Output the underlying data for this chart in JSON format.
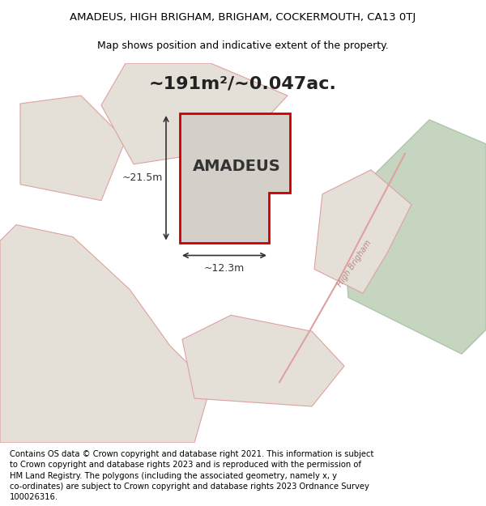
{
  "title": "AMADEUS, HIGH BRIGHAM, BRIGHAM, COCKERMOUTH, CA13 0TJ",
  "subtitle": "Map shows position and indicative extent of the property.",
  "area_text": "~191m²/~0.047ac.",
  "property_label": "AMADEUS",
  "dim1_label": "~21.5m",
  "dim2_label": "~12.3m",
  "road_label": "High Brigham",
  "footer_lines": [
    "Contains OS data © Crown copyright and database right 2021. This information is subject",
    "to Crown copyright and database rights 2023 and is reproduced with the permission of",
    "HM Land Registry. The polygons (including the associated geometry, namely x, y",
    "co-ordinates) are subject to Crown copyright and database rights 2023 Ordnance Survey",
    "100026316."
  ],
  "map_bg": "#ede9e2",
  "property_fill": "#d4cfc8",
  "property_edge": "#cc0000",
  "nearby_fill": "#e4e0d8",
  "nearby_edge": "#e0a0a0",
  "green_fill": "#c5d5c0",
  "green_edge": "#b0c4ac",
  "title_fontsize": 9.5,
  "subtitle_fontsize": 9,
  "footer_fontsize": 7.2
}
